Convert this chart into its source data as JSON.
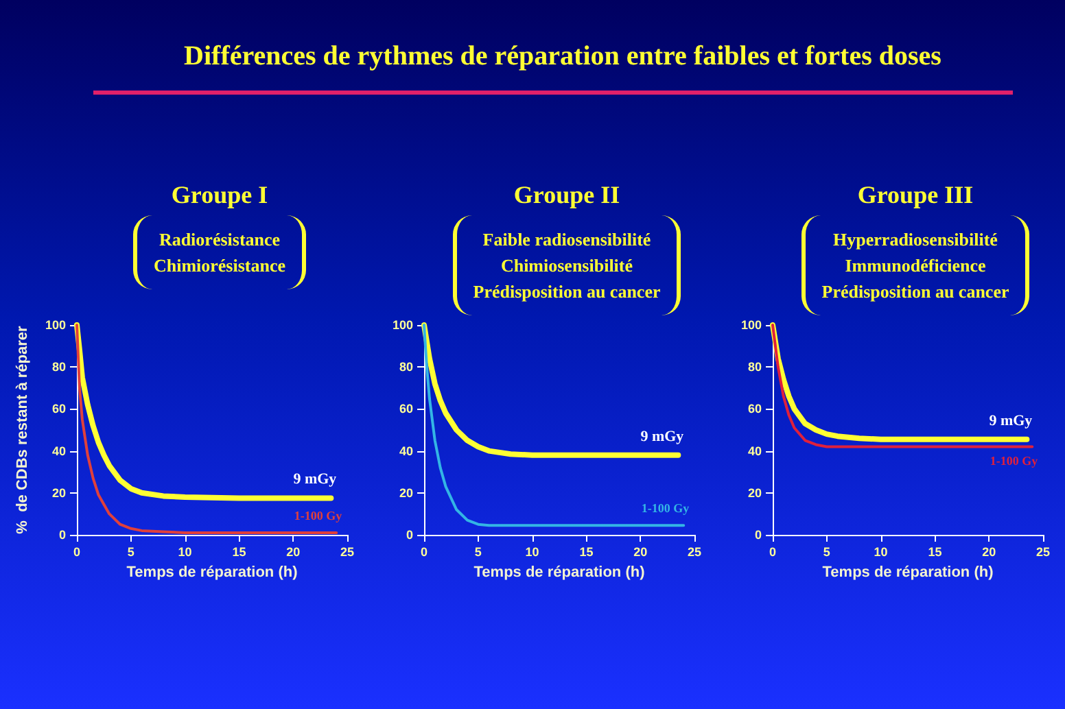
{
  "chart_data": [
    {
      "type": "line",
      "title": "Groupe I",
      "subtitle": "Radiorésistance\nChimiorésistance",
      "annotations": [
        "Différences de rythmes de réparation entre faibles et fortes doses"
      ],
      "xlabel": "Temps de réparation (h)",
      "ylabel": "%  de CDBs restant à réparer",
      "xlim": [
        0,
        25
      ],
      "xticks": [
        0,
        5,
        10,
        15,
        20,
        25
      ],
      "ylim": [
        0,
        100
      ],
      "yticks": [
        0,
        20,
        40,
        60,
        80,
        100
      ],
      "grid": false,
      "legend": false,
      "marker": "none",
      "line_style": "solid",
      "series": [
        {
          "name": "9 mGy",
          "color": "#ffff33",
          "x": [
            0,
            0.25,
            0.5,
            1,
            1.5,
            2,
            2.5,
            3,
            4,
            5,
            6,
            8,
            10,
            15,
            20,
            23.5
          ],
          "values": [
            100,
            88,
            75,
            62,
            52,
            44,
            38,
            33,
            26,
            22,
            20,
            18.5,
            18,
            17.5,
            17.5,
            17.5
          ]
        },
        {
          "name": "1-100 Gy",
          "color": "#e0403c",
          "x": [
            0,
            0.25,
            0.5,
            1,
            1.5,
            2,
            3,
            4,
            5,
            6,
            8,
            10,
            24
          ],
          "values": [
            100,
            70,
            55,
            38,
            27,
            19,
            10,
            5,
            3,
            2,
            1.5,
            1,
            1
          ]
        }
      ]
    },
    {
      "type": "line",
      "title": "Groupe II",
      "subtitle": "Faible radiosensibilité\nChimiosensibilité\nPrédisposition au cancer",
      "xlabel": "Temps de réparation (h)",
      "xlim": [
        0,
        25
      ],
      "xticks": [
        0,
        5,
        10,
        15,
        20,
        25
      ],
      "ylim": [
        0,
        100
      ],
      "yticks": [
        0,
        20,
        40,
        60,
        80,
        100
      ],
      "grid": false,
      "legend": false,
      "marker": "none",
      "line_style": "solid",
      "series": [
        {
          "name": "9 mGy",
          "color": "#ffff33",
          "x": [
            0,
            0.25,
            0.5,
            1,
            1.5,
            2,
            3,
            4,
            5,
            6,
            8,
            10,
            15,
            23.5
          ],
          "values": [
            100,
            92,
            84,
            72,
            64,
            58,
            50,
            45,
            42,
            40,
            38.5,
            38,
            38,
            38
          ]
        },
        {
          "name": "1-100 Gy",
          "color": "#33b5e5",
          "x": [
            0,
            0.25,
            0.5,
            1,
            1.5,
            2,
            3,
            4,
            5,
            6,
            8,
            10,
            24
          ],
          "values": [
            100,
            80,
            65,
            45,
            32,
            23,
            12,
            7,
            5,
            4.5,
            4.5,
            4.5,
            4.5
          ]
        }
      ]
    },
    {
      "type": "line",
      "title": "Groupe III",
      "subtitle": "Hyperradiosensibilité\nImmunodéficience\nPrédisposition au cancer",
      "xlabel": "Temps de réparation (h)",
      "xlim": [
        0,
        25
      ],
      "xticks": [
        0,
        5,
        10,
        15,
        20,
        25
      ],
      "ylim": [
        0,
        100
      ],
      "yticks": [
        0,
        20,
        40,
        60,
        80,
        100
      ],
      "grid": false,
      "legend": false,
      "marker": "none",
      "line_style": "solid",
      "series": [
        {
          "name": "9 mGy",
          "color": "#ffff33",
          "x": [
            0,
            0.25,
            0.5,
            1,
            1.5,
            2,
            3,
            4,
            5,
            6,
            8,
            10,
            15,
            23.5
          ],
          "values": [
            100,
            92,
            84,
            74,
            66,
            60,
            53,
            50,
            48,
            47,
            46,
            45.5,
            45.5,
            45.5
          ]
        },
        {
          "name": "1-100 Gy",
          "color": "#e0203c",
          "x": [
            0,
            0.25,
            0.5,
            1,
            1.5,
            2,
            3,
            4,
            5,
            6,
            10,
            24
          ],
          "values": [
            100,
            90,
            80,
            66,
            57,
            51,
            45,
            43,
            42,
            42,
            42,
            42
          ]
        }
      ]
    }
  ]
}
